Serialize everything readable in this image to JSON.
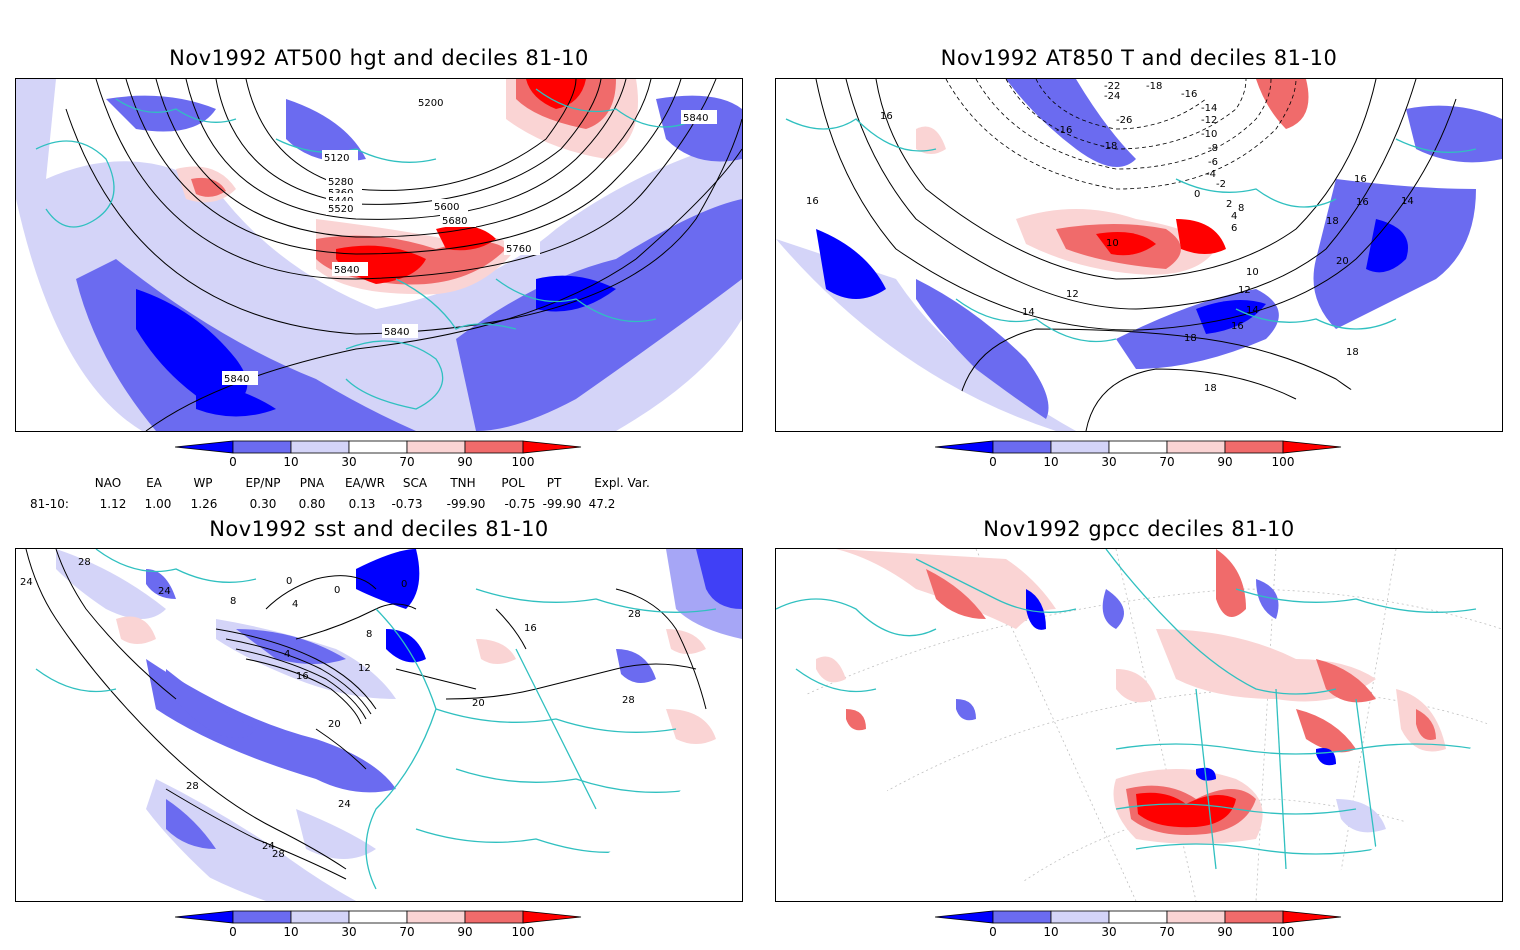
{
  "panels": [
    {
      "title": "Nov1992 AT500 hgt and deciles 81-10",
      "contour_labels": [
        "5200",
        "5120",
        "5280",
        "5360",
        "5440",
        "5520",
        "5600",
        "5680",
        "5760",
        "5840",
        "5840",
        "5840",
        "5840"
      ]
    },
    {
      "title": "Nov1992 AT850 T and deciles 81-10",
      "contour_labels": [
        "16",
        "16",
        "-22",
        "-24",
        "-18",
        "-16",
        "-14",
        "-12",
        "-10",
        "-26",
        "-18",
        "-16",
        "-8",
        "-6",
        "-4",
        "-2",
        "0",
        "2",
        "4",
        "6",
        "8",
        "10",
        "10",
        "12",
        "12",
        "14",
        "14",
        "14",
        "16",
        "16",
        "16",
        "18",
        "18",
        "18",
        "18",
        "20"
      ]
    },
    {
      "title": "Nov1992 sst and deciles 81-10",
      "contour_labels": [
        "28",
        "24",
        "24",
        "0",
        "0",
        "0",
        "8",
        "4",
        "4",
        "8",
        "12",
        "16",
        "20",
        "20",
        "16",
        "24",
        "28",
        "28",
        "28",
        "28",
        "24"
      ]
    },
    {
      "title": "Nov1992 gpcc deciles 81-10",
      "contour_labels": []
    }
  ],
  "colorbar": {
    "ticks": [
      "0",
      "10",
      "30",
      "70",
      "90",
      "100"
    ],
    "colors": [
      "#0000ff",
      "#6b6bf0",
      "#d4d4f8",
      "#ffffff",
      "#fad4d4",
      "#f06b6b",
      "#ff0000"
    ]
  },
  "indices": {
    "headers": [
      "NAO",
      "EA",
      "WP",
      "EP/NP",
      "PNA",
      "EA/WR",
      "SCA",
      "TNH",
      "POL",
      "PT",
      "Expl. Var."
    ],
    "row_label": "81-10:",
    "values": [
      "1.12",
      "1.00",
      "1.26",
      "0.30",
      "0.80",
      "0.13",
      "-0.73",
      "-99.90",
      "-0.75",
      "-99.90",
      "47.2"
    ]
  }
}
